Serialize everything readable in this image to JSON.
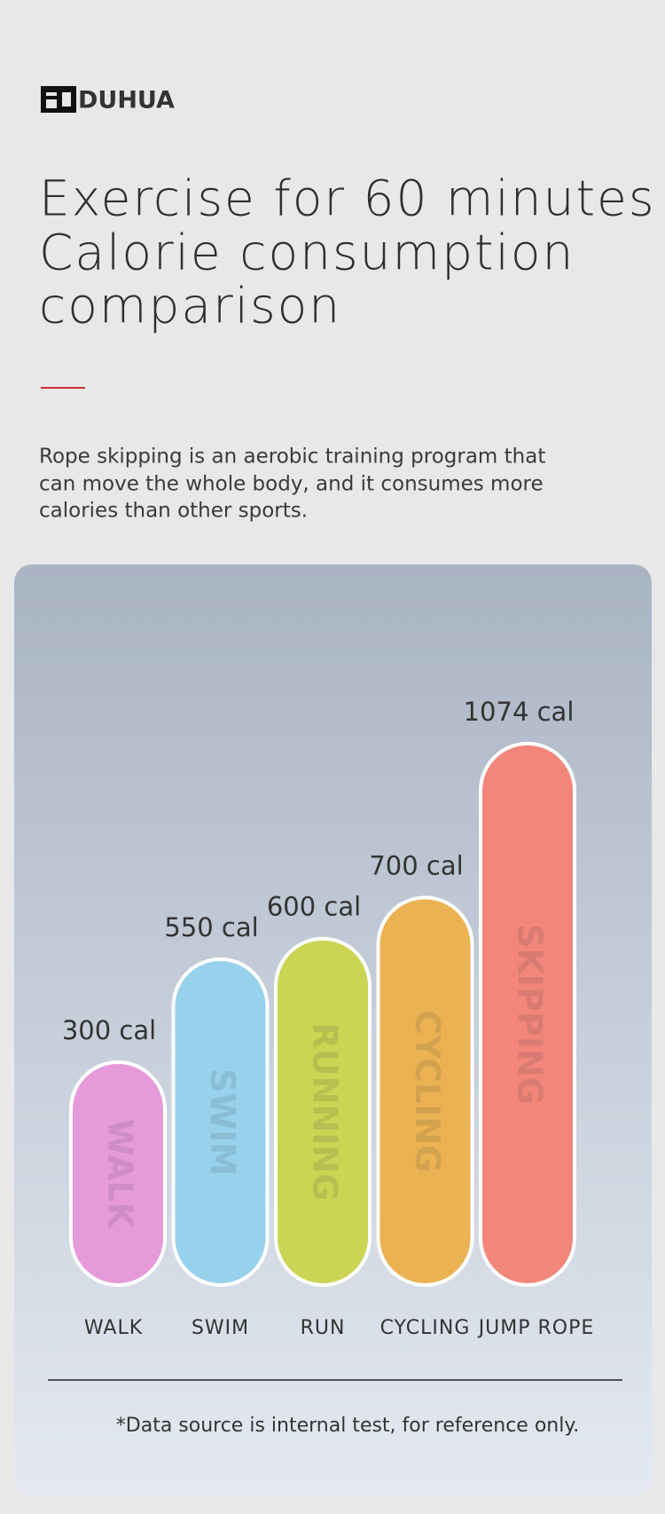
{
  "brand": "DUHUA",
  "headline": [
    "Exercise for 60 minutes",
    "Calorie consumption",
    "comparison"
  ],
  "description": [
    "Rope skipping is an aerobic training program that",
    "can move the whole body, and it consumes more",
    "calories than other sports."
  ],
  "chart_data": {
    "type": "bar",
    "categories": [
      "WALK",
      "SWIM",
      "RUN",
      "CYCLING",
      "JUMP ROPE"
    ],
    "values": [
      300,
      550,
      600,
      700,
      1074
    ],
    "value_labels": [
      "300 cal",
      "550 cal",
      "600 cal",
      "700 cal",
      "1074 cal"
    ],
    "bar_labels": [
      "WALK",
      "SWIM",
      "RUNNING",
      "CYCLING",
      "SKIPPING"
    ],
    "colors": [
      "#e59ad9",
      "#98d1ec",
      "#cad554",
      "#ebb253",
      "#f2867b"
    ],
    "footnote": "*Data source is internal test, for reference only."
  }
}
